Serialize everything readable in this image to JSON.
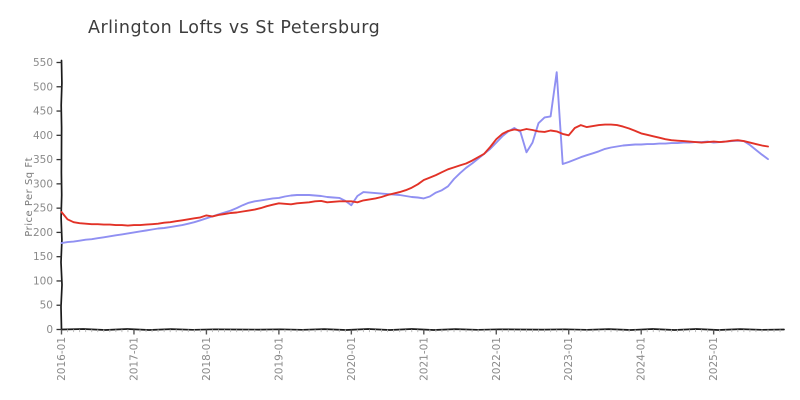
{
  "page": {
    "background": "#ffffff"
  },
  "chart_data": {
    "type": "line",
    "title": "Arlington Lofts vs St Petersburg",
    "xlabel": "",
    "ylabel": "Price Per Sq Ft",
    "ylim": [
      0,
      550
    ],
    "yticks": [
      0,
      50,
      100,
      150,
      200,
      250,
      300,
      350,
      400,
      450,
      500,
      550
    ],
    "x_major_tick_labels": [
      "2016-01",
      "2017-01",
      "2018-01",
      "2019-01",
      "2020-01",
      "2021-01",
      "2022-01",
      "2023-01",
      "2024-01",
      "2025-01"
    ],
    "x_start": "2016-01",
    "x_end": "2025-10",
    "x_interval": "monthly",
    "n_points": 118,
    "n_minor_ticks": 120,
    "grid": false,
    "legend_position": "none",
    "series": [
      {
        "name": "Arlington Lofts",
        "color": "#9090f2",
        "values": [
          178,
          180,
          181,
          183,
          185,
          186,
          188,
          190,
          192,
          194,
          196,
          198,
          200,
          202,
          204,
          206,
          208,
          209,
          211,
          213,
          215,
          218,
          221,
          225,
          229,
          233,
          237,
          241,
          245,
          250,
          256,
          261,
          264,
          266,
          268,
          270,
          271,
          274,
          276,
          277,
          277,
          277,
          276,
          275,
          273,
          272,
          271,
          265,
          256,
          275,
          283,
          282,
          281,
          280,
          279,
          278,
          277,
          275,
          273,
          272,
          270,
          274,
          282,
          287,
          295,
          310,
          322,
          333,
          342,
          352,
          362,
          372,
          385,
          398,
          408,
          415,
          407,
          365,
          385,
          425,
          437,
          439,
          530,
          341,
          345,
          350,
          355,
          359,
          363,
          367,
          372,
          375,
          377,
          379,
          380,
          381,
          381,
          382,
          382,
          383,
          383,
          384,
          384,
          385,
          385,
          386,
          386,
          387,
          385,
          386,
          387,
          388,
          389,
          388,
          380,
          370,
          360,
          351
        ]
      },
      {
        "name": "St Petersburg",
        "color": "#e23227",
        "values": [
          242,
          227,
          221,
          219,
          218,
          217,
          217,
          216,
          216,
          215,
          215,
          214,
          215,
          215,
          216,
          217,
          218,
          220,
          221,
          223,
          225,
          227,
          229,
          231,
          235,
          233,
          236,
          238,
          240,
          241,
          243,
          245,
          247,
          250,
          254,
          257,
          260,
          259,
          258,
          260,
          261,
          262,
          264,
          265,
          262,
          263,
          264,
          264,
          264,
          262,
          266,
          268,
          270,
          273,
          277,
          280,
          283,
          287,
          292,
          299,
          308,
          313,
          318,
          324,
          330,
          334,
          338,
          342,
          348,
          355,
          362,
          376,
          392,
          403,
          409,
          412,
          410,
          413,
          411,
          408,
          407,
          410,
          408,
          403,
          400,
          415,
          421,
          417,
          419,
          421,
          422,
          422,
          421,
          418,
          414,
          409,
          404,
          401,
          398,
          395,
          392,
          390,
          389,
          388,
          387,
          386,
          385,
          386,
          387,
          386,
          387,
          389,
          390,
          388,
          385,
          382,
          379,
          377
        ]
      }
    ]
  },
  "style": {
    "axis_color": "#1a1a1a",
    "major_tick_color": "#555555",
    "minor_tick_color": "#bcbcbc",
    "tick_label_color": "#8a8a8a",
    "title_color": "#3d3d3d"
  }
}
